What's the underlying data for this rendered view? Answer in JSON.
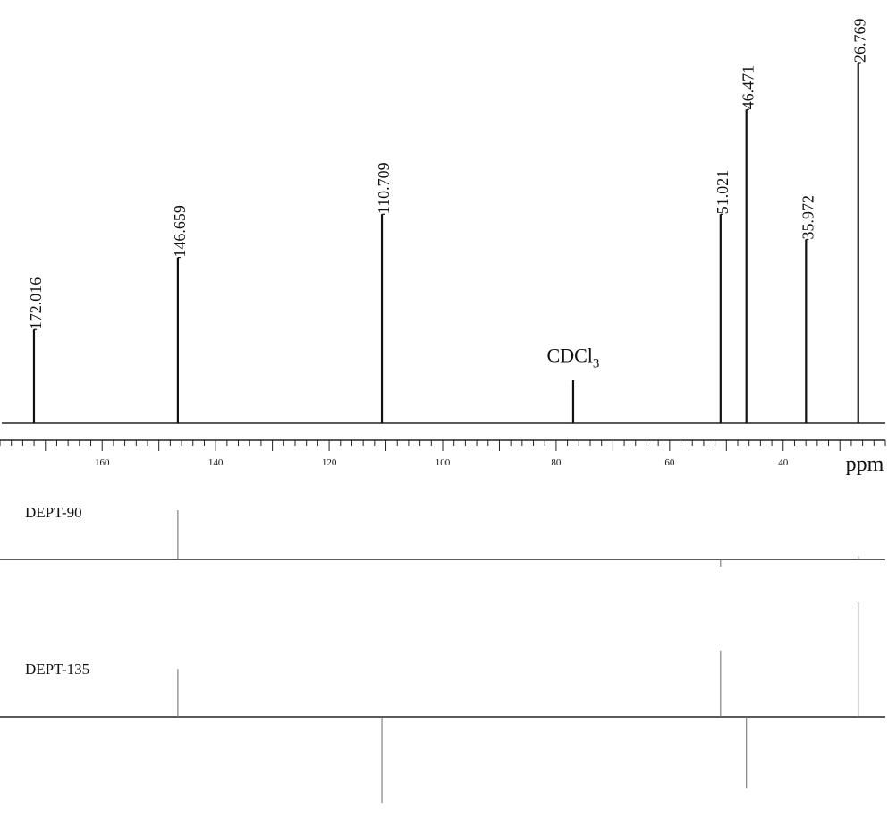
{
  "chart_data": [
    {
      "type": "nmr-spectrum",
      "panel": "13C",
      "xlabel": "ppm",
      "x_reversed": true,
      "xlim": [
        178,
        22
      ],
      "x_ticks": [
        160,
        140,
        120,
        100,
        80,
        60,
        40
      ],
      "peaks": [
        {
          "ppm": 172.016,
          "label": "172.016",
          "intensity": 0.26
        },
        {
          "ppm": 146.659,
          "label": "146.659",
          "intensity": 0.46
        },
        {
          "ppm": 110.709,
          "label": "110.709",
          "intensity": 0.58
        },
        {
          "ppm": 77.0,
          "label": "",
          "intensity": 0.12,
          "solvent": true
        },
        {
          "ppm": 51.021,
          "label": "51.021",
          "intensity": 0.58
        },
        {
          "ppm": 46.471,
          "label": "46.471",
          "intensity": 0.87
        },
        {
          "ppm": 35.972,
          "label": "35.972",
          "intensity": 0.51
        },
        {
          "ppm": 26.769,
          "label": "26.769",
          "intensity": 1.0
        }
      ],
      "solvent_label": {
        "main": "CDCl",
        "sub": "3"
      }
    },
    {
      "type": "nmr-spectrum",
      "panel": "DEPT-90",
      "title": "DEPT-90",
      "peaks": [
        {
          "ppm": 146.659,
          "intensity": 1.0
        },
        {
          "ppm": 51.021,
          "intensity": -0.15
        },
        {
          "ppm": 26.769,
          "intensity": 0.07
        }
      ]
    },
    {
      "type": "nmr-spectrum",
      "panel": "DEPT-135",
      "title": "DEPT-135",
      "peaks": [
        {
          "ppm": 146.659,
          "intensity": 0.42
        },
        {
          "ppm": 110.709,
          "intensity": -0.75
        },
        {
          "ppm": 51.021,
          "intensity": 0.58
        },
        {
          "ppm": 46.471,
          "intensity": -0.62
        },
        {
          "ppm": 26.769,
          "intensity": 1.0
        }
      ]
    }
  ]
}
